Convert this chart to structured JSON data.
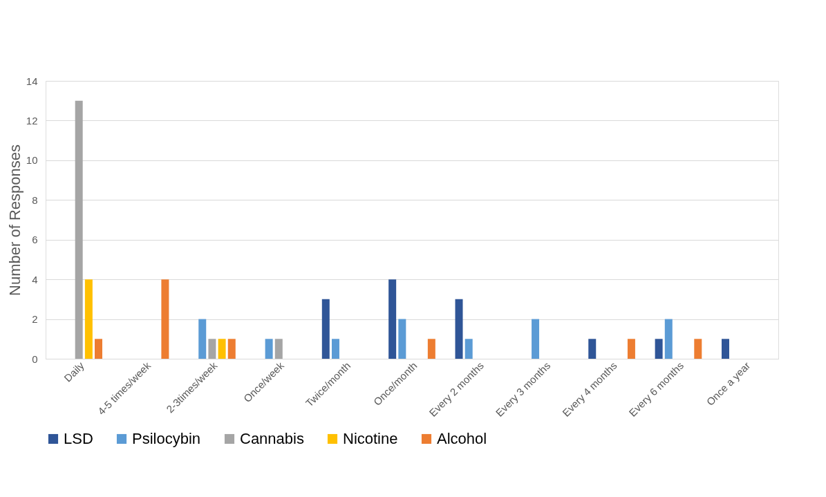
{
  "chart_data": {
    "type": "bar",
    "ylabel": "Number of Responses",
    "categories": [
      "Daily",
      "4-5 times/week",
      "2-3times/week",
      "Once/week",
      "Twice/month",
      "Once/month",
      "Every 2 months",
      "Every 3 months",
      "Every 4 months",
      "Every 6 months",
      "Once a year"
    ],
    "series": [
      {
        "name": "LSD",
        "color": "#2f5597",
        "values": [
          0,
          0,
          0,
          0,
          3,
          4,
          3,
          0,
          1,
          1,
          1
        ]
      },
      {
        "name": "Psilocybin",
        "color": "#5b9bd5",
        "values": [
          0,
          0,
          2,
          1,
          1,
          2,
          1,
          2,
          0,
          2,
          0
        ]
      },
      {
        "name": "Cannabis",
        "color": "#a5a5a5",
        "values": [
          13,
          0,
          1,
          1,
          0,
          0,
          0,
          0,
          0,
          0,
          0
        ]
      },
      {
        "name": "Nicotine",
        "color": "#ffc000",
        "values": [
          4,
          0,
          1,
          0,
          0,
          0,
          0,
          0,
          0,
          0,
          0
        ]
      },
      {
        "name": "Alcohol",
        "color": "#ed7d31",
        "values": [
          1,
          4,
          1,
          0,
          0,
          1,
          0,
          0,
          1,
          1,
          0
        ]
      }
    ],
    "ylim": [
      0,
      14
    ],
    "yticks": [
      0,
      2,
      4,
      6,
      8,
      10,
      12,
      14
    ],
    "grid": "y",
    "legend": "bottom"
  }
}
